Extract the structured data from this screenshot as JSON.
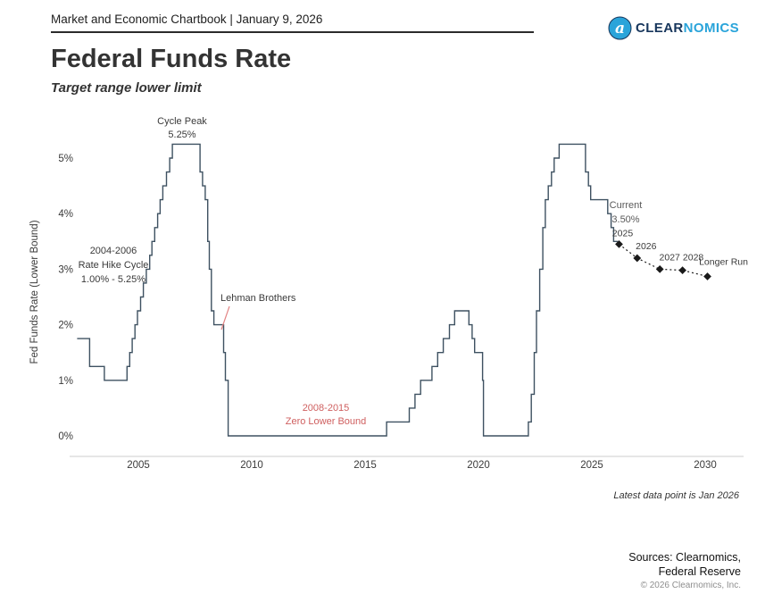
{
  "header": {
    "chartbook_title": "Market and Economic Chartbook | January 9, 2026"
  },
  "logo": {
    "brand_first": "CLEAR",
    "brand_second": "NOMICS",
    "icon_letter": "a",
    "brand_blue": "#2aa4da",
    "brand_navy": "#17365c"
  },
  "title": "Federal Funds Rate",
  "subtitle": "Target range lower limit",
  "chart_data": {
    "type": "line",
    "subtype": "step",
    "title": "Federal Funds Rate",
    "subtitle": "Target range lower limit",
    "ylabel": "Fed Funds Rate (Lower Bound)",
    "y_ticks": [
      "0%",
      "1%",
      "2%",
      "3%",
      "4%",
      "5%"
    ],
    "ylim": [
      0,
      5.5
    ],
    "x_ticks": [
      2005,
      2010,
      2015,
      2020,
      2025,
      2030
    ],
    "xlim": [
      2002.3,
      2031.5
    ],
    "grid": false,
    "legend": "none",
    "line_color": "#3e5161",
    "projection_color": "#1a1a1a",
    "accent_red": "#cf5f5f",
    "series": [
      [
        2002.3,
        1.75
      ],
      [
        2002.85,
        1.25
      ],
      [
        2003.5,
        1.0
      ],
      [
        2004.5,
        1.25
      ],
      [
        2004.62,
        1.5
      ],
      [
        2004.73,
        1.75
      ],
      [
        2004.85,
        2.0
      ],
      [
        2004.96,
        2.25
      ],
      [
        2005.1,
        2.5
      ],
      [
        2005.22,
        2.75
      ],
      [
        2005.35,
        3.0
      ],
      [
        2005.5,
        3.25
      ],
      [
        2005.6,
        3.5
      ],
      [
        2005.72,
        3.75
      ],
      [
        2005.85,
        4.0
      ],
      [
        2005.96,
        4.25
      ],
      [
        2006.08,
        4.5
      ],
      [
        2006.24,
        4.75
      ],
      [
        2006.38,
        5.0
      ],
      [
        2006.5,
        5.25
      ],
      [
        2007.72,
        4.75
      ],
      [
        2007.83,
        4.5
      ],
      [
        2007.95,
        4.25
      ],
      [
        2008.06,
        3.5
      ],
      [
        2008.13,
        3.0
      ],
      [
        2008.22,
        2.25
      ],
      [
        2008.33,
        2.0
      ],
      [
        2008.76,
        1.5
      ],
      [
        2008.84,
        1.0
      ],
      [
        2008.96,
        0.0
      ],
      [
        2015.95,
        0.25
      ],
      [
        2016.95,
        0.5
      ],
      [
        2017.2,
        0.75
      ],
      [
        2017.45,
        1.0
      ],
      [
        2017.95,
        1.25
      ],
      [
        2018.2,
        1.5
      ],
      [
        2018.45,
        1.75
      ],
      [
        2018.72,
        2.0
      ],
      [
        2018.95,
        2.25
      ],
      [
        2019.58,
        2.0
      ],
      [
        2019.72,
        1.75
      ],
      [
        2019.83,
        1.5
      ],
      [
        2020.18,
        1.0
      ],
      [
        2020.22,
        0.0
      ],
      [
        2022.2,
        0.25
      ],
      [
        2022.33,
        0.75
      ],
      [
        2022.46,
        1.5
      ],
      [
        2022.56,
        2.25
      ],
      [
        2022.7,
        3.0
      ],
      [
        2022.84,
        3.75
      ],
      [
        2022.95,
        4.25
      ],
      [
        2023.08,
        4.5
      ],
      [
        2023.22,
        4.75
      ],
      [
        2023.34,
        5.0
      ],
      [
        2023.56,
        5.25
      ],
      [
        2024.72,
        4.75
      ],
      [
        2024.85,
        4.5
      ],
      [
        2024.95,
        4.25
      ],
      [
        2025.7,
        4.0
      ],
      [
        2025.85,
        3.75
      ],
      [
        2025.96,
        3.5
      ]
    ],
    "series_end_year": 2026.15,
    "projections": [
      {
        "label": "2025",
        "year": 2026.2,
        "value": 3.45
      },
      {
        "label": "2026",
        "year": 2027.0,
        "value": 3.2
      },
      {
        "label": "2027",
        "year": 2028.0,
        "value": 3.0
      },
      {
        "label": "2028",
        "year": 2029.0,
        "value": 2.98
      },
      {
        "label": "Longer Run",
        "year": 2030.1,
        "value": 2.87
      }
    ],
    "annotations": [
      {
        "id": "cycle_peak",
        "lines": [
          "Cycle Peak",
          "5.25%"
        ]
      },
      {
        "id": "rate_hike",
        "lines": [
          "2004-2006",
          "Rate Hike Cycle",
          "1.00% - 5.25%"
        ]
      },
      {
        "id": "lehman",
        "lines": [
          "Lehman Brothers"
        ]
      },
      {
        "id": "zero_bound",
        "lines": [
          "2008-2015",
          "Zero Lower Bound"
        ]
      },
      {
        "id": "current",
        "lines": [
          "Current",
          "3.50%"
        ]
      }
    ]
  },
  "footnote": "Latest data point is Jan 2026",
  "sources": {
    "line1": "Sources: Clearnomics,",
    "line2": "Federal Reserve",
    "copyright": "© 2026 Clearnomics, Inc."
  }
}
